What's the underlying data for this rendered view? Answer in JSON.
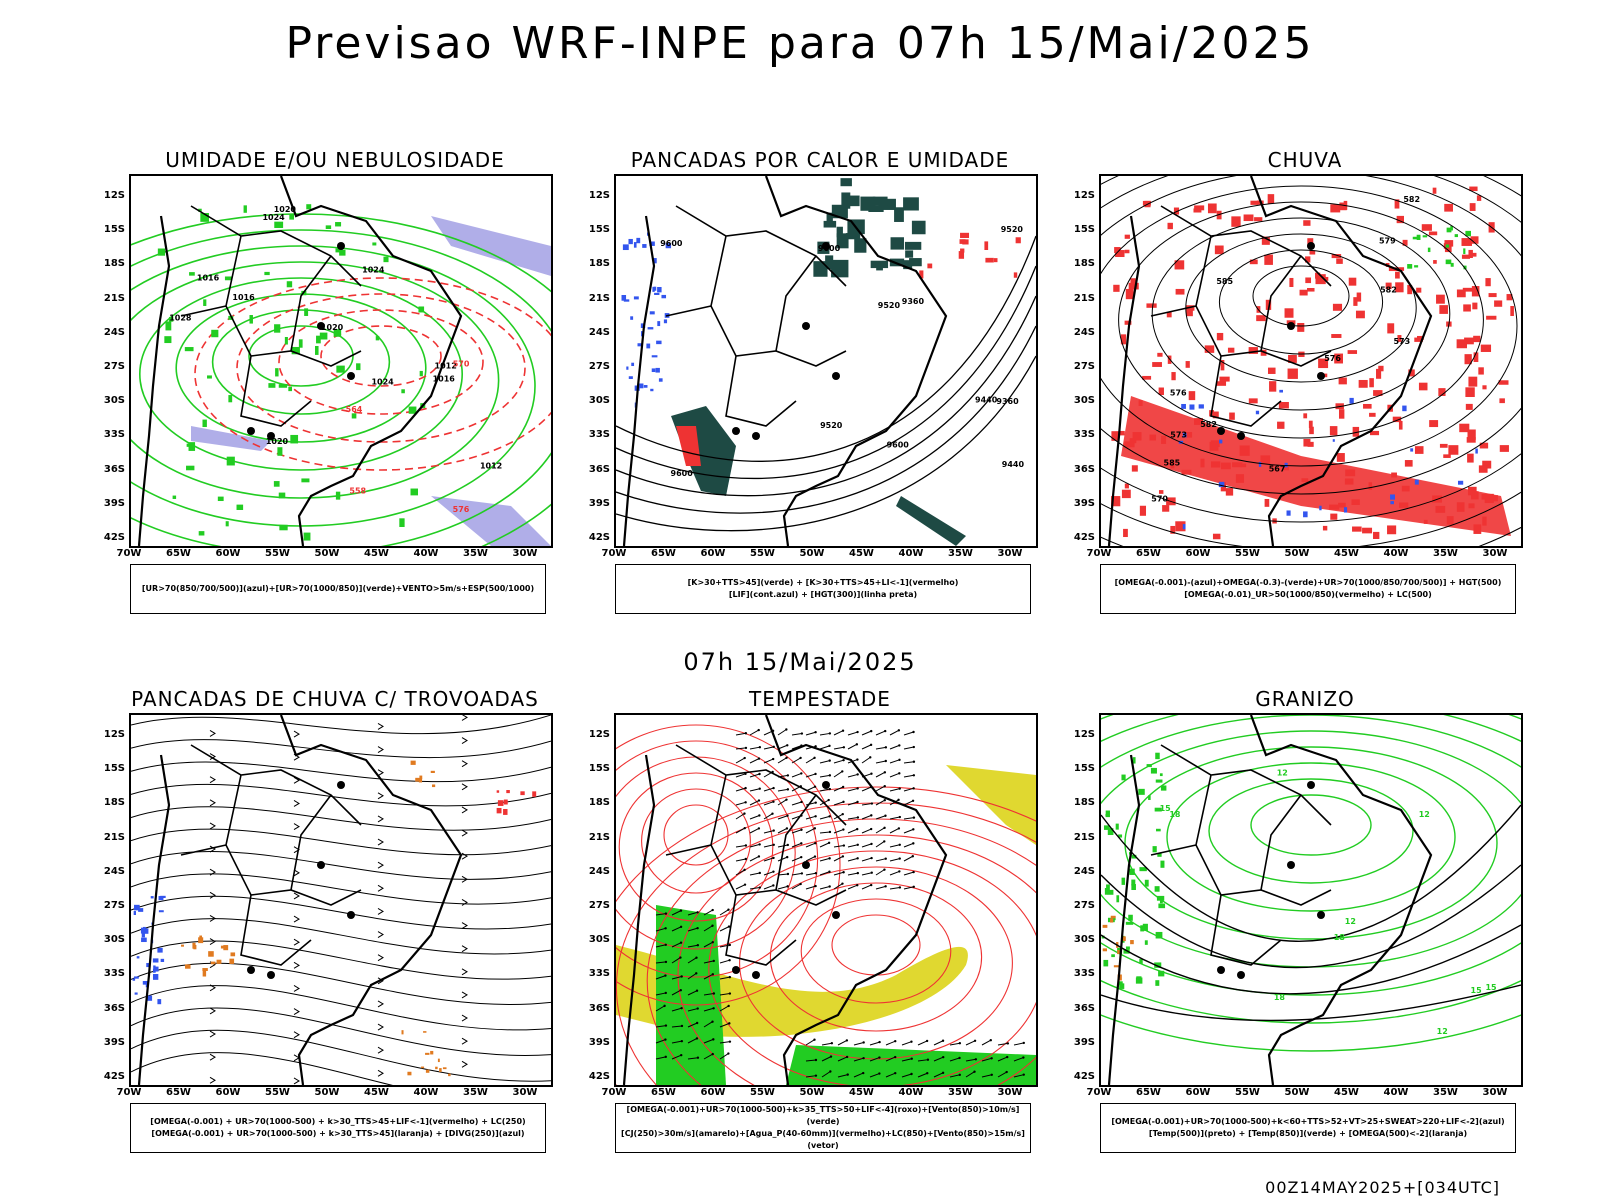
{
  "main_title": "Previsao WRF-INPE  para 07h 15/Mai/2025",
  "mid_title": "07h 15/Mai/2025",
  "footer": "00Z14MAY2025+[034UTC]",
  "lat_labels": [
    "12S",
    "15S",
    "18S",
    "21S",
    "24S",
    "27S",
    "30S",
    "33S",
    "36S",
    "39S",
    "42S"
  ],
  "lon_labels": [
    "70W",
    "65W",
    "60W",
    "55W",
    "50W",
    "45W",
    "40W",
    "35W",
    "30W"
  ],
  "colors": {
    "green": "#22cc22",
    "red": "#ee3333",
    "blue": "#3355ee",
    "lavender": "#b0aee8",
    "teal": "#1e4a44",
    "yellow": "#e0d830",
    "orange": "#e07a20"
  },
  "panels": [
    {
      "title": "UMIDADE E/OU NEBULOSIDADE",
      "legend": [
        "[UR>70(850/700/500)](azul)+[UR>70(1000/850)](verde)+VENTO>5m/s+ESP(500/1000)"
      ],
      "labels": [
        "1016",
        "1016",
        "1020",
        "1024",
        "1020",
        "1024",
        "1028",
        "1024",
        "1012",
        "1016",
        "1020",
        "1012",
        "576",
        "570",
        "564",
        "558"
      ]
    },
    {
      "title": "PANCADAS POR CALOR E UMIDADE",
      "legend": [
        "[K>30+TTS>45](verde) + [K>30+TTS>45+LI<-1](vermelho)",
        "[LIF](cont.azul) + [HGT(300)](linha preta)"
      ],
      "labels": [
        "9600",
        "9600",
        "9600",
        "9520",
        "9440",
        "9520",
        "9600",
        "9520",
        "9440",
        "9360",
        "9360"
      ]
    },
    {
      "title": "CHUVA",
      "legend": [
        "[OMEGA(-0.001)-(azul)+OMEGA(-0.3)-(verde)+UR>70(1000/850/700/500)] + HGT(500)",
        "[OMEGA(-0.01)_UR>50(1000/850)(vermelho) + LC(500)"
      ],
      "labels": [
        "582",
        "585",
        "582",
        "579",
        "576",
        "573",
        "570",
        "567",
        "585",
        "582",
        "576",
        "573"
      ]
    },
    {
      "title": "PANCADAS DE CHUVA C/ TROVOADAS",
      "legend": [
        "[OMEGA(-0.001) + UR>70(1000-500) + k>30_TTS>45+LIF<-1](vermelho) + LC(250)",
        "[OMEGA(-0.001) + UR>70(1000-500) + k>30_TTS>45](laranja) + [DIVG(250)](azul)"
      ],
      "labels": []
    },
    {
      "title": "TEMPESTADE",
      "legend": [
        "[OMEGA(-0.001)+UR>70(1000-500)+k>35_TTS>50+LIF<-4](roxo)+[Vento(850)>10m/s](verde)",
        "[CJ(250)>30m/s](amarelo)+[Agua_P(40-60mm)](vermelho)+LC(850)+[Vento(850)>15m/s](vetor)"
      ],
      "labels": []
    },
    {
      "title": "GRANIZO",
      "legend": [
        "[OMEGA(-0.001)+UR>70(1000-500)+k<60+TTS>52+VT>25+SWEAT>220+LIF<-2](azul)",
        "[Temp(500)](preto) + [Temp(850)](verde) + [OMEGA(500)<-2](laranja)"
      ],
      "labels": [
        "12",
        "15",
        "18",
        "12",
        "12",
        "15",
        "18",
        "15",
        "18",
        "12"
      ]
    }
  ]
}
